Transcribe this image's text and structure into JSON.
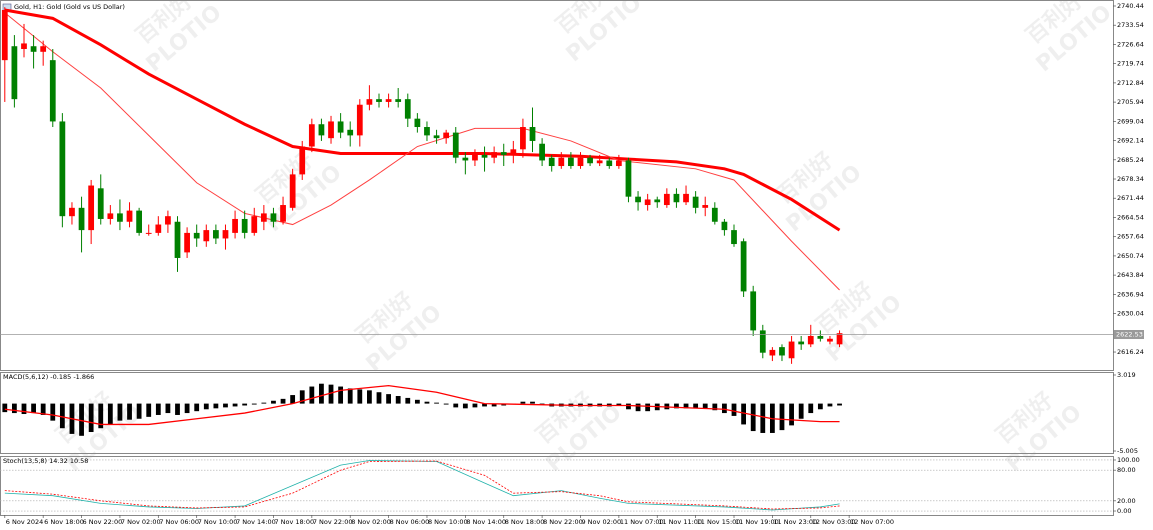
{
  "chart_data": [
    {
      "type": "candlestick",
      "title": "Gold, H1:  Gold (Gold vs US Dollar)",
      "open": [
        2721,
        2726,
        2725,
        2726,
        2724,
        2721,
        2699,
        2665,
        2668,
        2660,
        2675,
        2664,
        2666,
        2663,
        2667,
        2659,
        2659,
        2662,
        2663,
        2652,
        2659,
        2656,
        2660,
        2657,
        2659,
        2664,
        2659,
        2663,
        2666,
        2663,
        2668,
        2680,
        2690,
        2698,
        2693,
        2699,
        2696,
        2694,
        2705,
        2707,
        2706,
        2707,
        2707,
        2700,
        2697,
        2694,
        2693,
        2695,
        2686,
        2685,
        2687,
        2686,
        2688,
        2687,
        2689,
        2697,
        2691,
        2686,
        2683,
        2686,
        2683,
        2686,
        2684,
        2685,
        2683,
        2685,
        2672,
        2669,
        2671,
        2669,
        2673,
        2670,
        2672,
        2668,
        2668,
        2663,
        2660,
        2656,
        2638,
        2624,
        2615,
        2618,
        2614,
        2620,
        2619,
        2622,
        2620,
        2619
      ],
      "high": [
        2740,
        2730,
        2734,
        2730,
        2728,
        2725,
        2702,
        2670,
        2672,
        2678,
        2680,
        2669,
        2671,
        2670,
        2668,
        2662,
        2665,
        2667,
        2665,
        2661,
        2662,
        2662,
        2662,
        2662,
        2667,
        2667,
        2668,
        2669,
        2668,
        2672,
        2682,
        2692,
        2700,
        2700,
        2701,
        2702,
        2699,
        2707,
        2712,
        2709,
        2709,
        2711,
        2709,
        2702,
        2699,
        2696,
        2696,
        2697,
        2688,
        2689,
        2690,
        2690,
        2691,
        2692,
        2700,
        2704,
        2693,
        2687,
        2688,
        2688,
        2688,
        2687,
        2687,
        2686,
        2687,
        2686,
        2674,
        2673,
        2672,
        2675,
        2675,
        2676,
        2674,
        2672,
        2670,
        2664,
        2662,
        2657,
        2640,
        2626,
        2618,
        2619,
        2622,
        2622,
        2626,
        2624,
        2622,
        2624
      ],
      "low": [
        2706,
        2704,
        2722,
        2718,
        2719,
        2697,
        2661,
        2662,
        2652,
        2655,
        2662,
        2662,
        2660,
        2661,
        2658,
        2658,
        2658,
        2659,
        2645,
        2650,
        2654,
        2654,
        2655,
        2653,
        2657,
        2657,
        2658,
        2660,
        2661,
        2662,
        2667,
        2678,
        2688,
        2692,
        2691,
        2693,
        2690,
        2690,
        2703,
        2704,
        2704,
        2704,
        2697,
        2695,
        2692,
        2691,
        2691,
        2684,
        2680,
        2683,
        2681,
        2684,
        2683,
        2684,
        2686,
        2688,
        2683,
        2681,
        2682,
        2682,
        2682,
        2683,
        2683,
        2682,
        2682,
        2670,
        2667,
        2667,
        2668,
        2668,
        2668,
        2669,
        2666,
        2665,
        2662,
        2658,
        2654,
        2636,
        2622,
        2614,
        2613,
        2613,
        2612,
        2617,
        2618,
        2620,
        2619,
        2618
      ],
      "close": [
        2739,
        2707,
        2727,
        2724,
        2726,
        2699,
        2665,
        2668,
        2660,
        2676,
        2664,
        2666,
        2663,
        2667,
        2659,
        2659,
        2662,
        2665,
        2650,
        2659,
        2657,
        2660,
        2657,
        2660,
        2664,
        2659,
        2665,
        2666,
        2663,
        2669,
        2680,
        2690,
        2698,
        2694,
        2699,
        2695,
        2694,
        2705,
        2707,
        2706,
        2707,
        2706,
        2700,
        2697,
        2694,
        2693,
        2695,
        2686,
        2685,
        2687,
        2686,
        2688,
        2687,
        2689,
        2697,
        2692,
        2685,
        2683,
        2686,
        2683,
        2686,
        2684,
        2685,
        2683,
        2685,
        2672,
        2670,
        2671,
        2670,
        2673,
        2670,
        2673,
        2668,
        2669,
        2663,
        2660,
        2655,
        2638,
        2624,
        2616,
        2617,
        2615,
        2620,
        2619,
        2622,
        2621,
        2621,
        2623
      ],
      "up_color": "#ff0000",
      "down_color": "#008000",
      "lines": [
        {
          "color": "#ff0000",
          "width": 3,
          "x": [
            0,
            5,
            10,
            15,
            20,
            25,
            30,
            35,
            40,
            45,
            50,
            55,
            60,
            65,
            70,
            75,
            77,
            82,
            87
          ],
          "values": [
            2739,
            2736,
            2726.5,
            2716,
            2707,
            2698,
            2690,
            2687.5,
            2687.5,
            2687.5,
            2687.5,
            2687,
            2686.5,
            2685.5,
            2684.5,
            2682,
            2680,
            2671,
            2660
          ]
        },
        {
          "color": "#ff4040",
          "width": 1,
          "x": [
            0,
            5,
            10,
            15,
            20,
            25,
            30,
            34,
            38,
            43,
            49,
            54,
            59,
            64,
            72,
            76,
            82,
            87
          ],
          "values": [
            2738,
            2724,
            2711,
            2694,
            2677,
            2666,
            2662,
            2669,
            2678,
            2690,
            2696.5,
            2696.5,
            2692,
            2685,
            2682,
            2678,
            2656,
            2638.5
          ]
        }
      ],
      "last_price": 2622.53,
      "ylim": [
        2609.79,
        2742.59
      ],
      "yticks": [
        2740.44,
        2733.54,
        2726.64,
        2719.74,
        2712.84,
        2705.94,
        2699.04,
        2692.14,
        2685.24,
        2678.34,
        2671.44,
        2664.54,
        2657.64,
        2650.74,
        2643.84,
        2636.94,
        2630.04,
        2616.24
      ],
      "xlim": [
        -0.5,
        115.5
      ],
      "xticks": [
        {
          "value": 0,
          "label": "6 Nov 2024"
        },
        {
          "value": 4,
          "label": "6 Nov 18:00"
        },
        {
          "value": 8,
          "label": "6 Nov 22:00"
        },
        {
          "value": 12,
          "label": "7 Nov 02:00"
        },
        {
          "value": 16,
          "label": "7 Nov 06:00"
        },
        {
          "value": 20,
          "label": "7 Nov 10:00"
        },
        {
          "value": 24,
          "label": "7 Nov 14:00"
        },
        {
          "value": 28,
          "label": "7 Nov 18:00"
        },
        {
          "value": 32,
          "label": "7 Nov 22:00"
        },
        {
          "value": 36,
          "label": "8 Nov 02:00"
        },
        {
          "value": 40,
          "label": "8 Nov 06:00"
        },
        {
          "value": 44,
          "label": "8 Nov 10:00"
        },
        {
          "value": 48,
          "label": "8 Nov 14:00"
        },
        {
          "value": 52,
          "label": "8 Nov 18:00"
        },
        {
          "value": 56,
          "label": "8 Nov 22:00"
        },
        {
          "value": 60,
          "label": "9 Nov 02:00"
        },
        {
          "value": 64,
          "label": "11 Nov 07:00"
        },
        {
          "value": 68,
          "label": "11 Nov 11:00"
        },
        {
          "value": 72,
          "label": "11 Nov 15:00"
        },
        {
          "value": 76,
          "label": "11 Nov 19:00"
        },
        {
          "value": 80,
          "label": "11 Nov 23:00"
        },
        {
          "value": 84,
          "label": "12 Nov 03:00"
        },
        {
          "value": 88,
          "label": "12 Nov 07:00"
        }
      ]
    },
    {
      "type": "macd",
      "title": "MACD(5,6,12) -0.185 -1.866",
      "values": [
        -0.9,
        -1.0,
        -1.1,
        -1.0,
        -1.2,
        -1.8,
        -2.6,
        -3.2,
        -3.4,
        -3.0,
        -2.6,
        -2.2,
        -1.8,
        -1.7,
        -1.6,
        -1.4,
        -1.2,
        -1.0,
        -1.2,
        -1.0,
        -0.8,
        -0.6,
        -0.5,
        -0.4,
        -0.3,
        -0.2,
        -0.1,
        0.1,
        0.3,
        0.5,
        0.9,
        1.4,
        1.8,
        2.1,
        2.0,
        1.8,
        1.6,
        1.5,
        1.4,
        1.2,
        1.0,
        0.8,
        0.6,
        0.4,
        0.2,
        0.1,
        -0.1,
        -0.4,
        -0.5,
        -0.4,
        -0.3,
        -0.3,
        -0.2,
        0.0,
        0.2,
        0.2,
        -0.1,
        -0.3,
        -0.3,
        -0.3,
        -0.3,
        -0.3,
        -0.3,
        -0.3,
        -0.2,
        -0.6,
        -0.8,
        -0.8,
        -0.7,
        -0.6,
        -0.5,
        -0.5,
        -0.5,
        -0.5,
        -0.7,
        -1.0,
        -1.3,
        -2.2,
        -2.9,
        -3.1,
        -3.1,
        -2.8,
        -2.3,
        -1.6,
        -1.0,
        -0.6,
        -0.3,
        -0.2
      ],
      "color": "#000000",
      "signal": {
        "color": "#ff0000",
        "x": [
          0,
          5,
          10,
          15,
          20,
          25,
          30,
          35,
          40,
          45,
          50,
          55,
          60,
          65,
          70,
          75,
          80,
          85,
          87
        ],
        "values": [
          -0.6,
          -1.2,
          -2.2,
          -2.2,
          -1.6,
          -1.0,
          0.0,
          1.4,
          1.9,
          1.2,
          0.0,
          -0.1,
          -0.2,
          -0.2,
          -0.4,
          -0.6,
          -1.6,
          -1.9,
          -1.9
        ]
      },
      "ylim": [
        -5.216,
        3.336
      ],
      "yticks": [
        3.019,
        -5.005
      ]
    },
    {
      "type": "stoch",
      "title": "Stoch(13,5,8) 14.32 10.58",
      "series": [
        {
          "color": "#20b2aa",
          "dash": false,
          "x": [
            0,
            5,
            10,
            15,
            20,
            25,
            30,
            35,
            38,
            45,
            50,
            53,
            58,
            62,
            65,
            75,
            80,
            85,
            87
          ],
          "values": [
            35,
            30,
            15,
            8,
            5,
            10,
            50,
            90,
            99,
            97,
            55,
            30,
            40,
            25,
            15,
            8,
            2,
            8,
            14
          ]
        },
        {
          "color": "#ff0000",
          "dash": true,
          "x": [
            0,
            5,
            10,
            15,
            20,
            25,
            30,
            35,
            38,
            45,
            50,
            53,
            58,
            62,
            65,
            75,
            80,
            85,
            87
          ],
          "values": [
            40,
            33,
            20,
            10,
            6,
            8,
            35,
            80,
            97,
            98,
            70,
            35,
            38,
            30,
            18,
            10,
            4,
            6,
            10
          ]
        }
      ],
      "ylim": [
        -7.8,
        107.8
      ],
      "yticks": [
        {
          "value": 100,
          "label": "100.00"
        },
        {
          "value": 80,
          "label": "80.00"
        },
        {
          "value": 20,
          "label": "20.00"
        },
        {
          "value": 0,
          "label": "0.00"
        }
      ],
      "grid": "dotted"
    }
  ],
  "watermark": {
    "brand": "百利好",
    "logo": "PLOTIO"
  }
}
